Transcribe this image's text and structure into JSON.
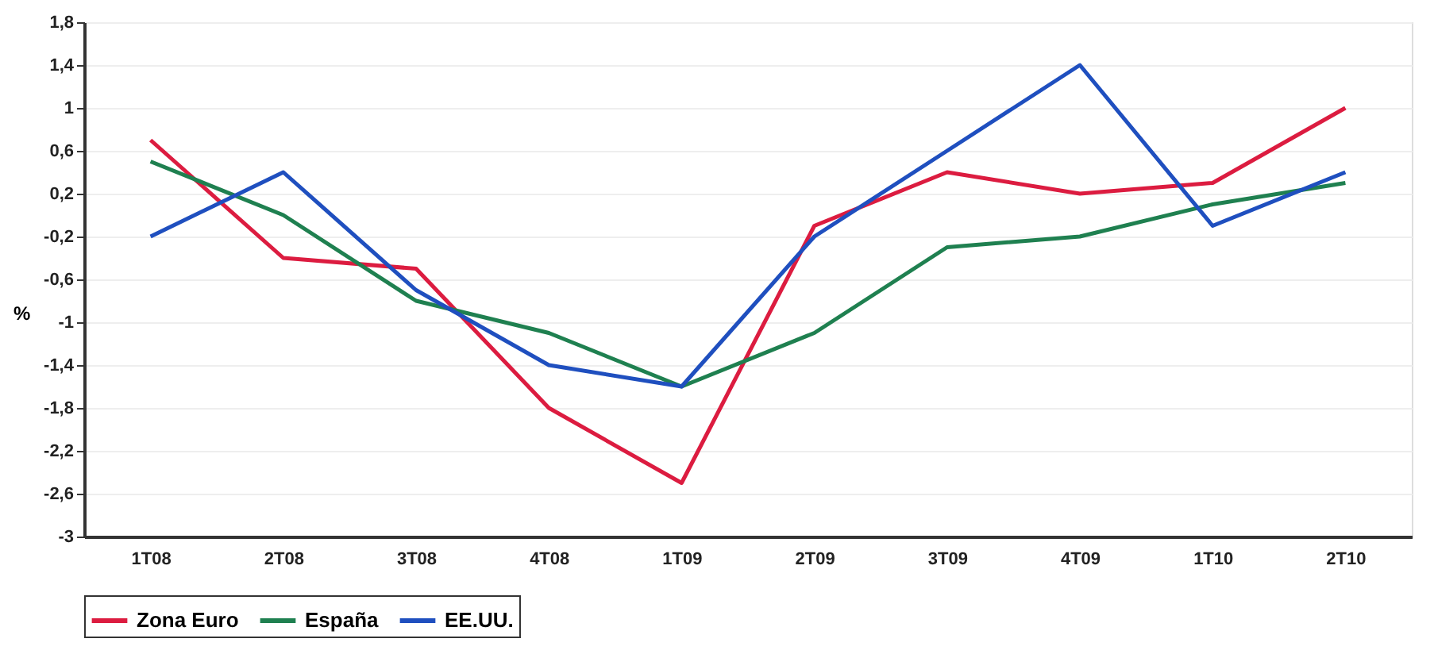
{
  "chart_data": {
    "type": "line",
    "ylabel": "%",
    "categories": [
      "1T08",
      "2T08",
      "3T08",
      "4T08",
      "1T09",
      "2T09",
      "3T09",
      "4T09",
      "1T10",
      "2T10"
    ],
    "series": [
      {
        "name": "Zona Euro",
        "color": "#dc1c40",
        "values": [
          0.7,
          -0.4,
          -0.5,
          -1.8,
          -2.5,
          -0.1,
          0.4,
          0.2,
          0.3,
          1.0
        ]
      },
      {
        "name": "España",
        "color": "#1f8050",
        "values": [
          0.5,
          0.0,
          -0.8,
          -1.1,
          -1.6,
          -1.1,
          -0.3,
          -0.2,
          0.1,
          0.3
        ]
      },
      {
        "name": "EE.UU.",
        "color": "#1f4fbf",
        "values": [
          -0.2,
          0.4,
          -0.7,
          -1.4,
          -1.6,
          -0.2,
          0.6,
          1.4,
          -0.1,
          0.4
        ]
      }
    ],
    "ylim": [
      -3,
      1.8
    ],
    "yticks": [
      {
        "value": 1.8,
        "label": "1,8"
      },
      {
        "value": 1.4,
        "label": "1,4"
      },
      1,
      {
        "value": 0.6,
        "label": "0,6"
      },
      {
        "value": 0.2,
        "label": "0,2"
      },
      {
        "value": -0.2,
        "label": "-0,2"
      },
      {
        "value": -0.6,
        "label": "-0,6"
      },
      -1,
      {
        "value": -1.4,
        "label": "-1,4"
      },
      {
        "value": -1.8,
        "label": "-1,8"
      },
      {
        "value": -2.2,
        "label": "-2,2"
      },
      {
        "value": -2.6,
        "label": "-2,6"
      },
      -3
    ],
    "grid": "y",
    "legend": "bottom",
    "marker": "none",
    "line_style": "solid"
  }
}
